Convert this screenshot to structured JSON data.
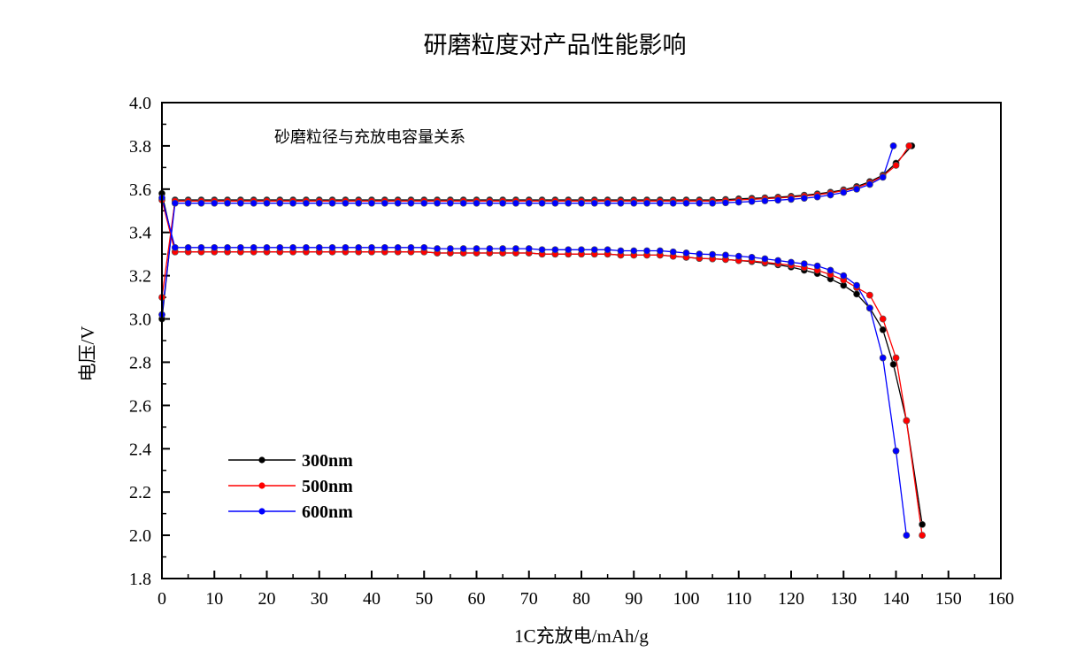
{
  "chart_data": {
    "type": "line",
    "title": "研磨粒度对产品性能影响",
    "annotation": "砂磨粒径与充放电容量关系",
    "xlabel": "1C充放电/mAh/g",
    "ylabel": "电压/V",
    "xlim": [
      0,
      160
    ],
    "ylim": [
      1.8,
      4.0
    ],
    "xticks": [
      "0",
      "10",
      "20",
      "30",
      "40",
      "50",
      "60",
      "70",
      "80",
      "90",
      "100",
      "110",
      "120",
      "130",
      "140",
      "150",
      "160"
    ],
    "yticks": [
      "1.8",
      "2.0",
      "2.2",
      "2.4",
      "2.6",
      "2.8",
      "3.0",
      "3.2",
      "3.4",
      "3.6",
      "3.8",
      "4.0"
    ],
    "grid": false,
    "legend_position": "bottom-left",
    "series": [
      {
        "name": "300nm",
        "color": "#000000",
        "charge": {
          "x": [
            0,
            2.5,
            5,
            7.5,
            10,
            12.5,
            15,
            17.5,
            20,
            22.5,
            25,
            27.5,
            30,
            32.5,
            35,
            37.5,
            40,
            42.5,
            45,
            47.5,
            50,
            52.5,
            55,
            57.5,
            60,
            62.5,
            65,
            67.5,
            70,
            72.5,
            75,
            77.5,
            80,
            82.5,
            85,
            87.5,
            90,
            92.5,
            95,
            97.5,
            100,
            102.5,
            105,
            107.5,
            110,
            112.5,
            115,
            117.5,
            120,
            122.5,
            125,
            127.5,
            130,
            132.5,
            135,
            137.5,
            140,
            143
          ],
          "y": [
            3.0,
            3.55,
            3.55,
            3.55,
            3.55,
            3.55,
            3.55,
            3.55,
            3.55,
            3.55,
            3.55,
            3.55,
            3.55,
            3.55,
            3.55,
            3.55,
            3.55,
            3.55,
            3.55,
            3.55,
            3.55,
            3.55,
            3.55,
            3.55,
            3.55,
            3.55,
            3.55,
            3.55,
            3.55,
            3.55,
            3.55,
            3.55,
            3.55,
            3.55,
            3.55,
            3.55,
            3.55,
            3.55,
            3.55,
            3.55,
            3.55,
            3.55,
            3.55,
            3.552,
            3.555,
            3.558,
            3.56,
            3.563,
            3.567,
            3.572,
            3.578,
            3.586,
            3.597,
            3.612,
            3.635,
            3.665,
            3.72,
            3.8
          ]
        },
        "discharge": {
          "x": [
            0,
            2.5,
            5,
            7.5,
            10,
            12.5,
            15,
            17.5,
            20,
            22.5,
            25,
            27.5,
            30,
            32.5,
            35,
            37.5,
            40,
            42.5,
            45,
            47.5,
            50,
            52.5,
            55,
            57.5,
            60,
            62.5,
            65,
            67.5,
            70,
            72.5,
            75,
            77.5,
            80,
            82.5,
            85,
            87.5,
            90,
            92.5,
            95,
            97.5,
            100,
            102.5,
            105,
            107.5,
            110,
            112.5,
            115,
            117.5,
            120,
            122.5,
            125,
            127.5,
            130,
            132.5,
            135,
            137.5,
            139.5,
            142,
            145
          ],
          "y": [
            3.58,
            3.31,
            3.31,
            3.31,
            3.31,
            3.31,
            3.31,
            3.31,
            3.31,
            3.31,
            3.31,
            3.31,
            3.31,
            3.31,
            3.31,
            3.31,
            3.31,
            3.31,
            3.31,
            3.31,
            3.31,
            3.305,
            3.305,
            3.305,
            3.305,
            3.305,
            3.305,
            3.305,
            3.305,
            3.3,
            3.3,
            3.3,
            3.3,
            3.3,
            3.3,
            3.295,
            3.295,
            3.295,
            3.295,
            3.29,
            3.285,
            3.28,
            3.278,
            3.275,
            3.27,
            3.265,
            3.258,
            3.25,
            3.24,
            3.225,
            3.21,
            3.185,
            3.155,
            3.115,
            3.05,
            2.95,
            2.79,
            2.53,
            2.05
          ]
        }
      },
      {
        "name": "500nm",
        "color": "#ff0000",
        "charge": {
          "x": [
            0,
            2.5,
            5,
            7.5,
            10,
            12.5,
            15,
            17.5,
            20,
            22.5,
            25,
            27.5,
            30,
            32.5,
            35,
            37.5,
            40,
            42.5,
            45,
            47.5,
            50,
            52.5,
            55,
            57.5,
            60,
            62.5,
            65,
            67.5,
            70,
            72.5,
            75,
            77.5,
            80,
            82.5,
            85,
            87.5,
            90,
            92.5,
            95,
            97.5,
            100,
            102.5,
            105,
            107.5,
            110,
            112.5,
            115,
            117.5,
            120,
            122.5,
            125,
            127.5,
            130,
            132.5,
            135,
            137.5,
            140,
            142.5
          ],
          "y": [
            3.1,
            3.545,
            3.545,
            3.545,
            3.545,
            3.545,
            3.545,
            3.545,
            3.545,
            3.545,
            3.545,
            3.545,
            3.545,
            3.545,
            3.545,
            3.545,
            3.545,
            3.545,
            3.545,
            3.545,
            3.545,
            3.545,
            3.545,
            3.545,
            3.545,
            3.545,
            3.545,
            3.545,
            3.545,
            3.545,
            3.545,
            3.545,
            3.545,
            3.545,
            3.545,
            3.545,
            3.545,
            3.545,
            3.545,
            3.545,
            3.545,
            3.545,
            3.545,
            3.547,
            3.55,
            3.553,
            3.556,
            3.559,
            3.563,
            3.568,
            3.574,
            3.582,
            3.593,
            3.607,
            3.63,
            3.66,
            3.71,
            3.8
          ]
        },
        "discharge": {
          "x": [
            0,
            2.5,
            5,
            7.5,
            10,
            12.5,
            15,
            17.5,
            20,
            22.5,
            25,
            27.5,
            30,
            32.5,
            35,
            37.5,
            40,
            42.5,
            45,
            47.5,
            50,
            52.5,
            55,
            57.5,
            60,
            62.5,
            65,
            67.5,
            70,
            72.5,
            75,
            77.5,
            80,
            82.5,
            85,
            87.5,
            90,
            92.5,
            95,
            97.5,
            100,
            102.5,
            105,
            107.5,
            110,
            112.5,
            115,
            117.5,
            120,
            122.5,
            125,
            127.5,
            130,
            132.5,
            135,
            137.5,
            140,
            142,
            145
          ],
          "y": [
            3.55,
            3.31,
            3.31,
            3.31,
            3.31,
            3.31,
            3.31,
            3.31,
            3.31,
            3.31,
            3.31,
            3.31,
            3.31,
            3.31,
            3.31,
            3.31,
            3.31,
            3.31,
            3.31,
            3.31,
            3.31,
            3.305,
            3.305,
            3.305,
            3.305,
            3.305,
            3.305,
            3.305,
            3.305,
            3.3,
            3.3,
            3.3,
            3.3,
            3.3,
            3.3,
            3.295,
            3.295,
            3.295,
            3.295,
            3.29,
            3.285,
            3.28,
            3.278,
            3.275,
            3.27,
            3.268,
            3.262,
            3.255,
            3.248,
            3.238,
            3.225,
            3.205,
            3.18,
            3.145,
            3.11,
            3.0,
            2.82,
            2.53,
            2.0
          ]
        }
      },
      {
        "name": "600nm",
        "color": "#0000ff",
        "charge": {
          "x": [
            0,
            2.5,
            5,
            7.5,
            10,
            12.5,
            15,
            17.5,
            20,
            22.5,
            25,
            27.5,
            30,
            32.5,
            35,
            37.5,
            40,
            42.5,
            45,
            47.5,
            50,
            52.5,
            55,
            57.5,
            60,
            62.5,
            65,
            67.5,
            70,
            72.5,
            75,
            77.5,
            80,
            82.5,
            85,
            87.5,
            90,
            92.5,
            95,
            97.5,
            100,
            102.5,
            105,
            107.5,
            110,
            112.5,
            115,
            117.5,
            120,
            122.5,
            125,
            127.5,
            130,
            132.5,
            135,
            137.5,
            139.5
          ],
          "y": [
            3.02,
            3.535,
            3.535,
            3.535,
            3.535,
            3.535,
            3.535,
            3.535,
            3.535,
            3.535,
            3.535,
            3.535,
            3.535,
            3.535,
            3.535,
            3.535,
            3.535,
            3.535,
            3.535,
            3.535,
            3.535,
            3.535,
            3.535,
            3.535,
            3.535,
            3.535,
            3.535,
            3.535,
            3.535,
            3.535,
            3.535,
            3.535,
            3.535,
            3.535,
            3.535,
            3.535,
            3.535,
            3.535,
            3.535,
            3.535,
            3.535,
            3.535,
            3.535,
            3.537,
            3.54,
            3.543,
            3.546,
            3.549,
            3.553,
            3.558,
            3.564,
            3.573,
            3.585,
            3.6,
            3.622,
            3.655,
            3.8
          ]
        },
        "discharge": {
          "x": [
            0,
            2.5,
            5,
            7.5,
            10,
            12.5,
            15,
            17.5,
            20,
            22.5,
            25,
            27.5,
            30,
            32.5,
            35,
            37.5,
            40,
            42.5,
            45,
            47.5,
            50,
            52.5,
            55,
            57.5,
            60,
            62.5,
            65,
            67.5,
            70,
            72.5,
            75,
            77.5,
            80,
            82.5,
            85,
            87.5,
            90,
            92.5,
            95,
            97.5,
            100,
            102.5,
            105,
            107.5,
            110,
            112.5,
            115,
            117.5,
            120,
            122.5,
            125,
            127.5,
            130,
            132.5,
            135,
            137.5,
            140,
            142
          ],
          "y": [
            3.56,
            3.33,
            3.33,
            3.33,
            3.33,
            3.33,
            3.33,
            3.33,
            3.33,
            3.33,
            3.33,
            3.33,
            3.33,
            3.33,
            3.33,
            3.33,
            3.33,
            3.33,
            3.33,
            3.33,
            3.33,
            3.325,
            3.325,
            3.325,
            3.325,
            3.325,
            3.325,
            3.325,
            3.325,
            3.32,
            3.32,
            3.32,
            3.32,
            3.32,
            3.32,
            3.315,
            3.315,
            3.315,
            3.315,
            3.31,
            3.305,
            3.3,
            3.298,
            3.295,
            3.29,
            3.285,
            3.278,
            3.27,
            3.262,
            3.255,
            3.245,
            3.225,
            3.2,
            3.155,
            3.05,
            2.82,
            2.39,
            2.0
          ]
        }
      }
    ]
  }
}
